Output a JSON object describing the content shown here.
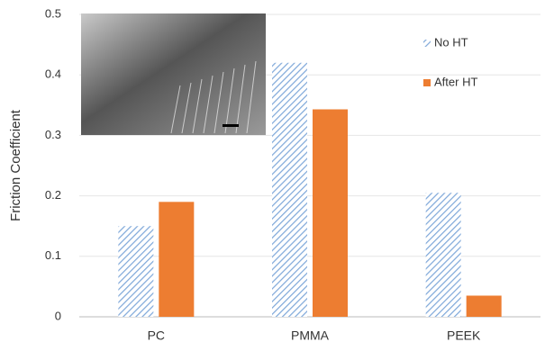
{
  "chart_data": {
    "type": "bar",
    "y_label": "Friction Coefficient",
    "categories": [
      "PC",
      "PMMA",
      "PEEK"
    ],
    "series": [
      {
        "name": "No HT",
        "color": "#7da7d9",
        "values": [
          0.15,
          0.42,
          0.205
        ]
      },
      {
        "name": "After HT",
        "color": "#ed7d31",
        "values": [
          0.19,
          0.343,
          0.035
        ]
      }
    ],
    "ylim": [
      0,
      0.5
    ],
    "yticks": [
      0,
      0.1,
      0.2,
      0.3,
      0.4,
      0.5
    ],
    "grid": true,
    "legend": "top-right"
  }
}
